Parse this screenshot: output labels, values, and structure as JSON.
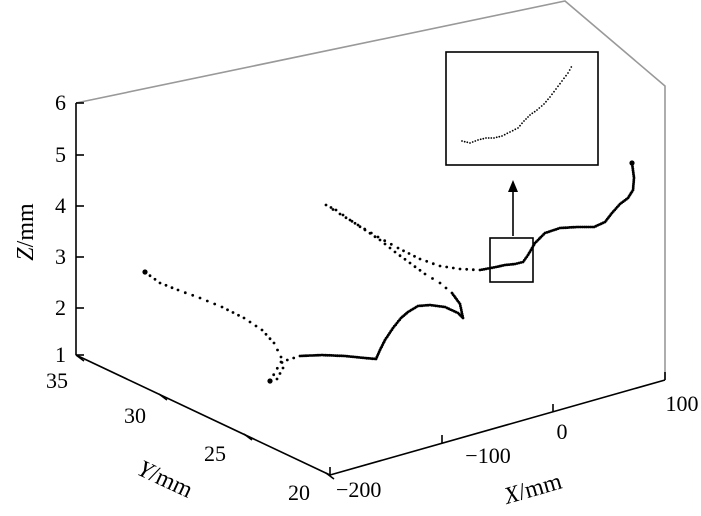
{
  "chart_data": {
    "type": "scatter",
    "projection": "3d",
    "title": "",
    "grid": false,
    "xlabel": "X/mm",
    "ylabel": "Y/mm",
    "zlabel": "Z/mm",
    "x_label_var": "X",
    "x_label_unit": "/mm",
    "y_label_var": "Y",
    "y_label_unit": "/mm",
    "z_label_var": "Z",
    "z_label_unit": "/mm",
    "xlim": [
      -200,
      100
    ],
    "ylim": [
      20,
      35
    ],
    "zlim": [
      1,
      6
    ],
    "x_ticks": [
      "−200",
      "−100",
      "0",
      "100"
    ],
    "y_ticks": [
      "35",
      "30",
      "25",
      "20"
    ],
    "z_ticks": [
      "6",
      "5",
      "4",
      "3",
      "2",
      "1"
    ],
    "colors": {
      "axis": "#000000",
      "box": "#999999",
      "points": "#000000"
    },
    "inset": {
      "description_shown": "zoomed view of boxed region",
      "position": "top-right"
    },
    "series": [
      {
        "values": [
          [
            -160,
            30.5,
            2.2
          ],
          [
            -150,
            30.0,
            2.0
          ],
          [
            -140,
            29.5,
            1.8
          ],
          [
            -130,
            29.0,
            1.6
          ],
          [
            -120,
            28.5,
            1.5
          ],
          [
            -110,
            28.0,
            1.6
          ],
          [
            -100,
            27.5,
            1.9
          ],
          [
            -90,
            27.0,
            2.3
          ],
          [
            -80,
            26.5,
            2.6
          ],
          [
            -70,
            26.0,
            2.7
          ],
          [
            -60,
            25.5,
            2.8
          ],
          [
            -50,
            25.0,
            3.2
          ],
          [
            -40,
            24.5,
            3.8
          ],
          [
            -30,
            24.0,
            4.2
          ]
        ]
      }
    ]
  }
}
